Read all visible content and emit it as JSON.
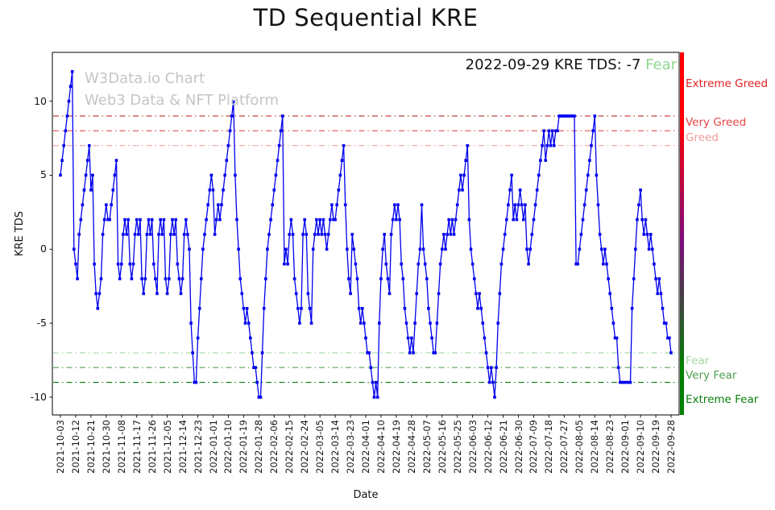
{
  "watermark": {
    "line1": "W3Data.io Chart",
    "line2": "Web3 Data & NFT Platform",
    "color": "#c5c5c5"
  },
  "annotation": {
    "prefix": "2022-09-29 KRE TDS: -7 ",
    "status": "Fear",
    "status_color": "#90d890"
  },
  "zones": {
    "labels": [
      {
        "text": "Extreme Greed",
        "color": "#e02020",
        "at_value": 11.1
      },
      {
        "text": "Very Greed",
        "color": "#e84545",
        "at_value": 8.5
      },
      {
        "text": "Greed",
        "color": "#f09a9a",
        "at_value": 7.5
      },
      {
        "text": "Fear",
        "color": "#a5d6a0",
        "at_value": -7.6
      },
      {
        "text": "Very Fear",
        "color": "#4d9f4d",
        "at_value": -8.6
      },
      {
        "text": "Extreme Fear",
        "color": "#0b7d0b",
        "at_value": -10.2
      }
    ]
  },
  "sentiment_bar": {
    "top_color": "#ff0000",
    "middle_color": "#7d0b7d",
    "bottom_color": "#008000"
  },
  "chart_data": {
    "type": "line",
    "title": "TD Sequential KRE",
    "xlabel": "Date",
    "ylabel": "KRE TDS",
    "series_name": "KRE TDS",
    "start_date": "2021-10-03",
    "end_date": "2022-09-28",
    "frequency": "daily",
    "x_tick_interval_days": 9,
    "x_tick_labels": [
      "2021-10-03",
      "2021-10-12",
      "2021-10-21",
      "2021-10-30",
      "2021-11-08",
      "2021-11-17",
      "2021-11-26",
      "2021-12-05",
      "2021-12-14",
      "2021-12-23",
      "2022-01-01",
      "2022-01-10",
      "2022-01-19",
      "2022-01-28",
      "2022-02-06",
      "2022-02-15",
      "2022-02-24",
      "2022-03-05",
      "2022-03-14",
      "2022-03-23",
      "2022-04-01",
      "2022-04-10",
      "2022-04-19",
      "2022-04-28",
      "2022-05-07",
      "2022-05-16",
      "2022-05-25",
      "2022-06-03",
      "2022-06-12",
      "2022-06-21",
      "2022-06-30",
      "2022-07-09",
      "2022-07-18",
      "2022-07-27",
      "2022-08-05",
      "2022-08-14",
      "2022-08-23",
      "2022-09-01",
      "2022-09-10",
      "2022-09-19",
      "2022-09-28"
    ],
    "yticks": [
      10,
      5,
      0,
      -5,
      -10
    ],
    "ylim": [
      -11.2,
      13.3
    ],
    "line_color": "#0000ee",
    "marker": "square",
    "values": [
      5,
      6,
      7,
      8,
      9,
      10,
      11,
      12,
      0,
      -1,
      -2,
      1,
      2,
      3,
      4,
      5,
      6,
      7,
      4,
      5,
      -1,
      -3,
      -4,
      -3,
      -2,
      1,
      2,
      3,
      2,
      2,
      3,
      4,
      5,
      6,
      -1,
      -2,
      -1,
      1,
      2,
      1,
      2,
      -1,
      -2,
      -1,
      1,
      2,
      1,
      2,
      -2,
      -3,
      -2,
      1,
      2,
      1,
      2,
      -1,
      -2,
      -3,
      1,
      2,
      1,
      2,
      -2,
      -3,
      -2,
      1,
      2,
      1,
      2,
      -1,
      -2,
      -3,
      -2,
      1,
      2,
      1,
      0,
      -5,
      -7,
      -9,
      -9,
      -6,
      -4,
      -2,
      0,
      1,
      2,
      3,
      4,
      5,
      4,
      1,
      2,
      3,
      2,
      3,
      4,
      5,
      6,
      7,
      8,
      9,
      10,
      5,
      2,
      0,
      -2,
      -3,
      -4,
      -5,
      -4,
      -5,
      -6,
      -7,
      -8,
      -8,
      -9,
      -10,
      -10,
      -7,
      -4,
      -2,
      0,
      1,
      2,
      3,
      4,
      5,
      6,
      7,
      8,
      9,
      -1,
      0,
      -1,
      1,
      2,
      1,
      -2,
      -3,
      -4,
      -5,
      -4,
      1,
      2,
      1,
      -3,
      -4,
      -5,
      0,
      1,
      2,
      1,
      2,
      1,
      2,
      1,
      0,
      1,
      2,
      3,
      2,
      2,
      3,
      4,
      5,
      6,
      7,
      3,
      0,
      -2,
      -3,
      1,
      0,
      -1,
      -2,
      -4,
      -5,
      -4,
      -5,
      -6,
      -7,
      -7,
      -8,
      -9,
      -10,
      -9,
      -10,
      -5,
      -2,
      0,
      1,
      -1,
      -2,
      -3,
      1,
      2,
      3,
      2,
      3,
      2,
      -1,
      -2,
      -4,
      -5,
      -6,
      -7,
      -6,
      -7,
      -5,
      -3,
      -1,
      0,
      3,
      0,
      -1,
      -2,
      -4,
      -5,
      -6,
      -7,
      -7,
      -5,
      -3,
      -1,
      0,
      1,
      0,
      1,
      2,
      1,
      2,
      1,
      2,
      3,
      4,
      5,
      4,
      5,
      6,
      7,
      2,
      0,
      -1,
      -2,
      -3,
      -4,
      -3,
      -4,
      -5,
      -6,
      -7,
      -8,
      -9,
      -8,
      -9,
      -10,
      -8,
      -5,
      -3,
      -1,
      0,
      1,
      2,
      3,
      4,
      5,
      2,
      3,
      2,
      3,
      4,
      3,
      2,
      3,
      0,
      -1,
      0,
      1,
      2,
      3,
      4,
      5,
      6,
      7,
      8,
      6,
      7,
      8,
      7,
      8,
      7,
      8,
      8,
      9,
      9,
      9,
      9,
      9,
      9,
      9,
      9,
      9,
      9,
      -1,
      -1,
      0,
      1,
      2,
      3,
      4,
      5,
      6,
      7,
      8,
      9,
      5,
      3,
      1,
      0,
      -1,
      0,
      -1,
      -2,
      -3,
      -4,
      -5,
      -6,
      -6,
      -8,
      -9,
      -9,
      -9,
      -9,
      -9,
      -9,
      -9,
      -4,
      -2,
      0,
      2,
      3,
      4,
      2,
      1,
      2,
      1,
      0,
      1,
      0,
      -1,
      -2,
      -3,
      -2,
      -3,
      -4,
      -5,
      -5,
      -6,
      -6,
      -7
    ],
    "threshold_lines": [
      {
        "value": 9,
        "label": "Very Greed",
        "color": "#b01515"
      },
      {
        "value": 8,
        "label": "",
        "color": "#e05050"
      },
      {
        "value": 7,
        "label": "Greed",
        "color": "#f0a0a0"
      },
      {
        "value": -7,
        "label": "Fear",
        "color": "#a5d6a5"
      },
      {
        "value": -8,
        "label": "Very Fear",
        "color": "#55a055"
      },
      {
        "value": -9,
        "label": "Extreme Fear",
        "color": "#0b7d0b"
      }
    ],
    "latest": {
      "date": "2022-09-29",
      "value": -7,
      "sentiment": "Fear"
    }
  }
}
